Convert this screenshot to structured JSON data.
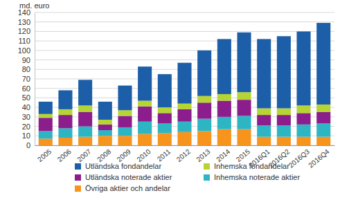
{
  "chart_data": {
    "type": "bar",
    "stacked": true,
    "grid": true,
    "legend": "bottom",
    "ylabel": "md. euro",
    "categories": [
      "2005",
      "2006",
      "2007",
      "2008",
      "2009",
      "2010",
      "2011",
      "2012",
      "2013",
      "2014",
      "2015",
      "2016Q1",
      "2016Q2",
      "2016Q3",
      "2016Q4"
    ],
    "ylim": [
      0,
      140
    ],
    "yticks": [
      0,
      10,
      20,
      30,
      40,
      50,
      60,
      70,
      80,
      90,
      100,
      110,
      120,
      130,
      140
    ],
    "series": [
      {
        "name": "Övriga aktier och andelar",
        "color": "#f7941d",
        "values": [
          7,
          8,
          9,
          10,
          10,
          12,
          13,
          14,
          15,
          17,
          17,
          9,
          9,
          9,
          9
        ]
      },
      {
        "name": "Inhemska noterade aktier",
        "color": "#2eb5c3",
        "values": [
          8,
          10,
          11,
          6,
          9,
          13,
          10,
          11,
          13,
          13,
          14,
          12,
          12,
          13,
          14
        ]
      },
      {
        "name": "Utländska noterade aktier",
        "color": "#8c1d8c",
        "values": [
          14,
          14,
          15,
          6,
          12,
          16,
          11,
          13,
          17,
          17,
          17,
          11,
          11,
          12,
          12
        ]
      },
      {
        "name": "Inhemska fondandelar",
        "color": "#b6d433",
        "values": [
          4,
          6,
          7,
          5,
          6,
          6,
          6,
          6,
          7,
          7,
          8,
          7,
          7,
          8,
          8
        ]
      },
      {
        "name": "Utländska fondandelar",
        "color": "#1c5fa8",
        "values": [
          13,
          20,
          27,
          19,
          26,
          36,
          35,
          43,
          48,
          58,
          63,
          73,
          76,
          78,
          86
        ]
      }
    ]
  }
}
